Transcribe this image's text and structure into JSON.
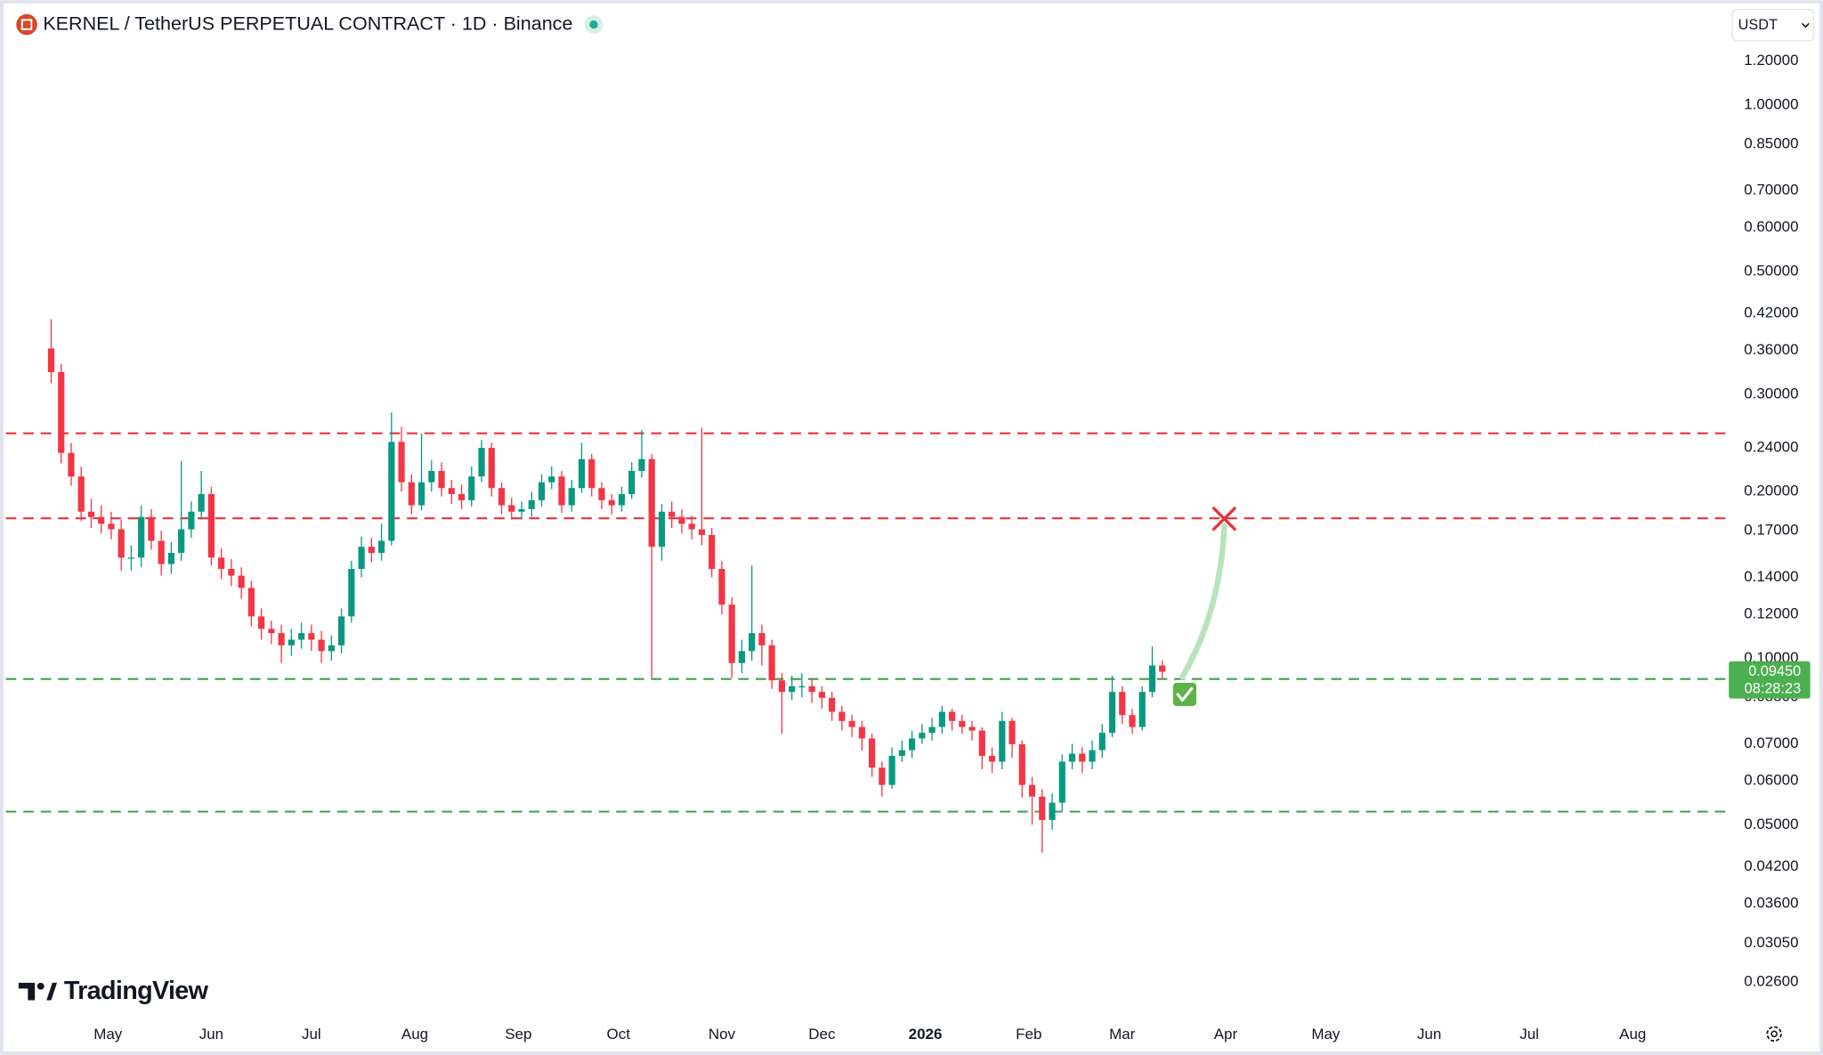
{
  "chart_data": {
    "type": "candlestick",
    "title": "KERNEL / TetherUS PERPETUAL CONTRACT · 1D · Binance",
    "currency_label": "USDT",
    "watermark": "TradingView",
    "log_scale": true,
    "grid": false,
    "up_color": "#089981",
    "down_color": "#f23645",
    "xlim": [
      -4.53,
      167.6
    ],
    "ylim": [
      0.0224,
      1.51
    ],
    "xticks": [
      {
        "value": 5.67,
        "label": "May"
      },
      {
        "value": 16,
        "label": "Jun"
      },
      {
        "value": 26,
        "label": "Jul"
      },
      {
        "value": 36.33,
        "label": "Aug"
      },
      {
        "value": 46.67,
        "label": "Sep"
      },
      {
        "value": 56.67,
        "label": "Oct"
      },
      {
        "value": 67,
        "label": "Nov"
      },
      {
        "value": 77,
        "label": "Dec"
      },
      {
        "value": 87.33,
        "label": "2026"
      },
      {
        "value": 97.67,
        "label": "Feb"
      },
      {
        "value": 107,
        "label": "Mar"
      },
      {
        "value": 117.33,
        "label": "Apr"
      },
      {
        "value": 127.33,
        "label": "May"
      },
      {
        "value": 137.67,
        "label": "Jun"
      },
      {
        "value": 147.67,
        "label": "Jul"
      },
      {
        "value": 158,
        "label": "Aug"
      }
    ],
    "yticks": [
      {
        "value": 1.2,
        "label": "1.20000"
      },
      {
        "value": 1,
        "label": "1.00000"
      },
      {
        "value": 0.85,
        "label": "0.85000"
      },
      {
        "value": 0.7,
        "label": "0.70000"
      },
      {
        "value": 0.6,
        "label": "0.60000"
      },
      {
        "value": 0.5,
        "label": "0.50000"
      },
      {
        "value": 0.42,
        "label": "0.42000"
      },
      {
        "value": 0.36,
        "label": "0.36000"
      },
      {
        "value": 0.3,
        "label": "0.30000"
      },
      {
        "value": 0.24,
        "label": "0.24000"
      },
      {
        "value": 0.2,
        "label": "0.20000"
      },
      {
        "value": 0.17,
        "label": "0.17000"
      },
      {
        "value": 0.14,
        "label": "0.14000"
      },
      {
        "value": 0.12,
        "label": "0.12000"
      },
      {
        "value": 0.1,
        "label": "0.10000"
      },
      {
        "value": 0.085,
        "label": "0.08500"
      },
      {
        "value": 0.07,
        "label": "0.07000"
      },
      {
        "value": 0.06,
        "label": "0.06000"
      },
      {
        "value": 0.05,
        "label": "0.05000"
      },
      {
        "value": 0.042,
        "label": "0.04200"
      },
      {
        "value": 0.036,
        "label": "0.03600"
      },
      {
        "value": 0.0305,
        "label": "0.03050"
      },
      {
        "value": 0.026,
        "label": "0.02600"
      }
    ],
    "open": [
      0.363,
      0.329,
      0.235,
      0.213,
      0.184,
      0.18,
      0.175,
      0.171,
      0.152,
      0.152,
      0.18,
      0.163,
      0.148,
      0.155,
      0.171,
      0.184,
      0.198,
      0.152,
      0.145,
      0.141,
      0.134,
      0.119,
      0.113,
      0.111,
      0.1055,
      0.108,
      0.111,
      0.108,
      0.103,
      0.1055,
      0.119,
      0.145,
      0.159,
      0.155,
      0.163,
      0.246,
      0.208,
      0.189,
      0.208,
      0.218,
      0.203,
      0.198,
      0.193,
      0.213,
      0.24,
      0.203,
      0.189,
      0.184,
      0.186,
      0.193,
      0.208,
      0.213,
      0.189,
      0.203,
      0.229,
      0.203,
      0.193,
      0.189,
      0.198,
      0.218,
      0.229,
      0.159,
      0.184,
      0.18,
      0.175,
      0.171,
      0.167,
      0.145,
      0.125,
      0.098,
      0.103,
      0.111,
      0.1055,
      0.0912,
      0.0869,
      0.089,
      0.089,
      0.0869,
      0.0848,
      0.08,
      0.077,
      0.0751,
      0.0716,
      0.0634,
      0.059,
      0.0666,
      0.0682,
      0.0716,
      0.0733,
      0.0751,
      0.08,
      0.077,
      0.0751,
      0.074,
      0.0666,
      0.065,
      0.077,
      0.0699,
      0.059,
      0.0562,
      0.051,
      0.0548,
      0.065,
      0.0672,
      0.065,
      0.0682,
      0.0733,
      0.0869,
      0.0789,
      0.0751,
      0.0869,
      0.097
    ],
    "high": [
      0.41,
      0.34,
      0.245,
      0.222,
      0.194,
      0.189,
      0.184,
      0.178,
      0.16,
      0.189,
      0.186,
      0.17,
      0.162,
      0.227,
      0.192,
      0.218,
      0.204,
      0.158,
      0.151,
      0.146,
      0.138,
      0.123,
      0.117,
      0.115,
      0.113,
      0.116,
      0.115,
      0.112,
      0.11,
      0.123,
      0.15,
      0.166,
      0.165,
      0.175,
      0.278,
      0.262,
      0.215,
      0.255,
      0.228,
      0.226,
      0.21,
      0.206,
      0.222,
      0.248,
      0.245,
      0.208,
      0.195,
      0.192,
      0.2,
      0.215,
      0.222,
      0.218,
      0.21,
      0.245,
      0.234,
      0.208,
      0.198,
      0.204,
      0.226,
      0.2585,
      0.234,
      0.19,
      0.192,
      0.186,
      0.181,
      0.261,
      0.172,
      0.15,
      0.129,
      0.108,
      0.147,
      0.115,
      0.108,
      0.094,
      0.093,
      0.094,
      0.092,
      0.089,
      0.087,
      0.082,
      0.079,
      0.077,
      0.073,
      0.065,
      0.069,
      0.071,
      0.074,
      0.076,
      0.078,
      0.082,
      0.081,
      0.079,
      0.077,
      0.075,
      0.069,
      0.08,
      0.078,
      0.071,
      0.061,
      0.058,
      0.057,
      0.067,
      0.07,
      0.069,
      0.071,
      0.076,
      0.093,
      0.089,
      0.081,
      0.089,
      0.105,
      0.099
    ],
    "low": [
      0.314,
      0.225,
      0.205,
      0.177,
      0.172,
      0.168,
      0.164,
      0.144,
      0.144,
      0.146,
      0.157,
      0.141,
      0.142,
      0.15,
      0.165,
      0.178,
      0.147,
      0.139,
      0.135,
      0.128,
      0.114,
      0.108,
      0.106,
      0.098,
      0.101,
      0.104,
      0.103,
      0.098,
      0.099,
      0.102,
      0.116,
      0.14,
      0.149,
      0.15,
      0.16,
      0.2,
      0.182,
      0.185,
      0.2,
      0.196,
      0.19,
      0.186,
      0.188,
      0.208,
      0.196,
      0.182,
      0.178,
      0.178,
      0.18,
      0.188,
      0.202,
      0.183,
      0.184,
      0.199,
      0.196,
      0.186,
      0.182,
      0.184,
      0.194,
      0.212,
      0.092,
      0.15,
      0.172,
      0.168,
      0.164,
      0.16,
      0.14,
      0.12,
      0.092,
      0.094,
      0.099,
      0.097,
      0.088,
      0.073,
      0.084,
      0.085,
      0.083,
      0.081,
      0.077,
      0.074,
      0.072,
      0.068,
      0.061,
      0.0562,
      0.058,
      0.065,
      0.066,
      0.07,
      0.071,
      0.073,
      0.074,
      0.073,
      0.071,
      0.063,
      0.062,
      0.063,
      0.066,
      0.056,
      0.05,
      0.0445,
      0.049,
      0.053,
      0.063,
      0.062,
      0.063,
      0.066,
      0.072,
      0.076,
      0.073,
      0.074,
      0.085,
      0.092
    ],
    "close": [
      0.329,
      0.235,
      0.213,
      0.184,
      0.18,
      0.175,
      0.171,
      0.152,
      0.152,
      0.18,
      0.163,
      0.148,
      0.155,
      0.171,
      0.184,
      0.198,
      0.152,
      0.145,
      0.141,
      0.134,
      0.119,
      0.113,
      0.111,
      0.1055,
      0.108,
      0.111,
      0.108,
      0.103,
      0.1055,
      0.119,
      0.145,
      0.159,
      0.155,
      0.163,
      0.246,
      0.208,
      0.189,
      0.208,
      0.218,
      0.203,
      0.198,
      0.193,
      0.213,
      0.24,
      0.203,
      0.189,
      0.184,
      0.186,
      0.193,
      0.208,
      0.213,
      0.189,
      0.203,
      0.229,
      0.203,
      0.193,
      0.189,
      0.198,
      0.218,
      0.229,
      0.159,
      0.184,
      0.18,
      0.175,
      0.171,
      0.167,
      0.145,
      0.125,
      0.098,
      0.103,
      0.111,
      0.1055,
      0.0912,
      0.0869,
      0.089,
      0.089,
      0.0869,
      0.0848,
      0.08,
      0.077,
      0.0751,
      0.0716,
      0.0634,
      0.059,
      0.0666,
      0.0682,
      0.0716,
      0.0733,
      0.0751,
      0.08,
      0.077,
      0.0751,
      0.074,
      0.0666,
      0.065,
      0.077,
      0.0699,
      0.059,
      0.0562,
      0.051,
      0.0548,
      0.065,
      0.0672,
      0.065,
      0.0682,
      0.0733,
      0.0869,
      0.0789,
      0.0751,
      0.0869,
      0.097,
      0.0945
    ],
    "levels": [
      {
        "value": 0.255,
        "color": "#e8323c"
      },
      {
        "value": 0.179,
        "color": "#e8323c"
      },
      {
        "value": 0.0917,
        "color": "#3da14a"
      },
      {
        "value": 0.0528,
        "color": "#3da14a"
      }
    ],
    "last_price": {
      "value": 0.0945,
      "label": "0.09450"
    },
    "countdown": "08:28:23",
    "last_price_color": "#4caf50"
  }
}
